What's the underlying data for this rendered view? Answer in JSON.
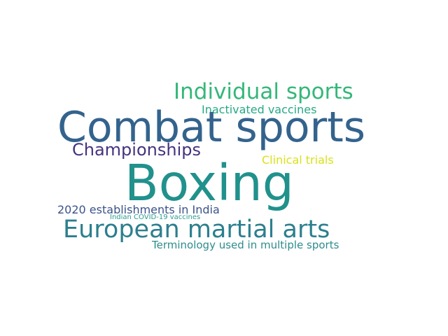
{
  "words": [
    {
      "text": "Individual sports",
      "color": "#35b779"
    },
    {
      "text": "Inactivated vaccines",
      "color": "#26a985"
    },
    {
      "text": "Combat sports",
      "color": "#33638d"
    },
    {
      "text": "Championships",
      "color": "#46337f"
    },
    {
      "text": "Clinical trials",
      "color": "#d8e219"
    },
    {
      "text": "Boxing",
      "color": "#21918c"
    },
    {
      "text": "2020 establishments in India",
      "color": "#3b528b"
    },
    {
      "text": "Indian COVID-19 vaccines",
      "color": "#2a9d8f"
    },
    {
      "text": "European martial arts",
      "color": "#2c7f8e"
    },
    {
      "text": "Terminology used in multiple sports",
      "color": "#2d8c8d"
    }
  ]
}
